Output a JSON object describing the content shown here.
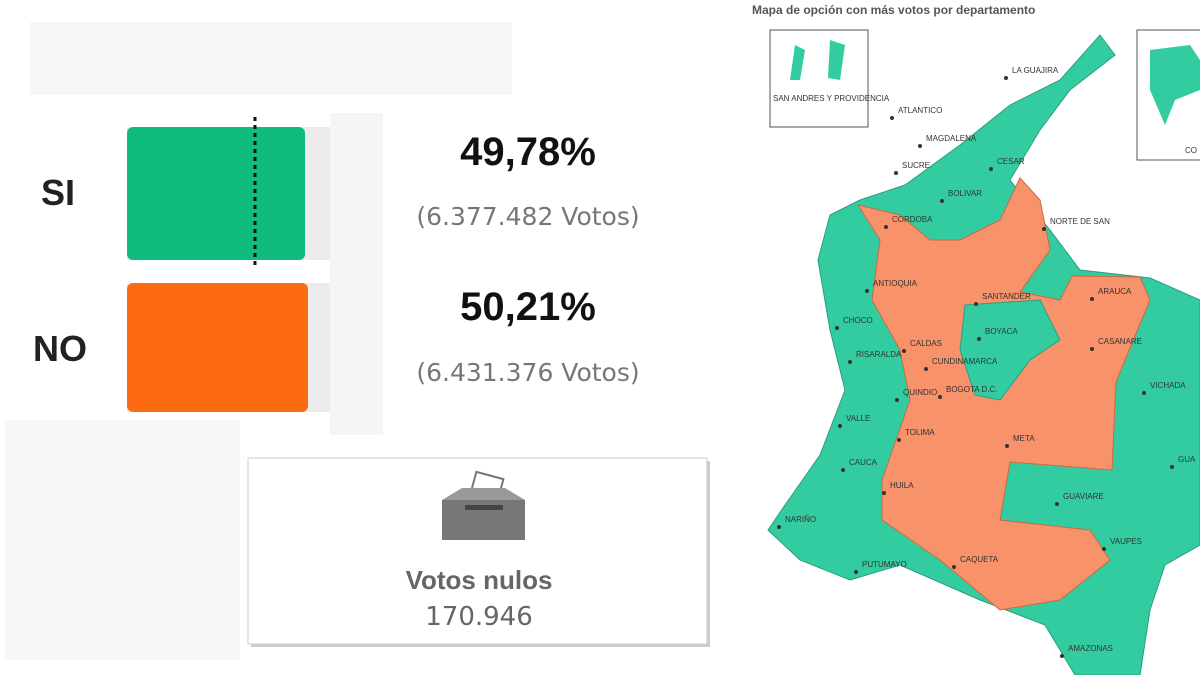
{
  "results": {
    "options": [
      {
        "label": "SI",
        "percent": "49,78%",
        "votes": "(6.377.482 Votos)"
      },
      {
        "label": "NO",
        "percent": "50,21%",
        "votes": "(6.431.376 Votos)"
      }
    ],
    "null_votes": {
      "label": "Votos nulos",
      "value": "170.946"
    }
  },
  "map": {
    "title": "Mapa de opción con más votos por departamento",
    "insets": [
      "SAN ANDRES Y PROVIDENCIA",
      "CO"
    ],
    "departments": [
      "LA GUAJIRA",
      "ATLANTICO",
      "MAGDALENA",
      "CESAR",
      "SUCRE",
      "BOLIVAR",
      "CORDOBA",
      "NORTE DE SAN",
      "ANTIOQUIA",
      "SANTANDER",
      "ARAUCA",
      "CHOCO",
      "BOYACA",
      "CASANARE",
      "CALDAS",
      "RISARALDA",
      "CUNDINAMARCA",
      "VICHADA",
      "BOGOTA D.C.",
      "QUINDIO",
      "VALLE",
      "TOLIMA",
      "META",
      "GUA",
      "CAUCA",
      "HUILA",
      "GUAVIARE",
      "NARIÑO",
      "PUTUMAYO",
      "CAQUETA",
      "VAUPES",
      "AMAZONAS"
    ]
  }
}
